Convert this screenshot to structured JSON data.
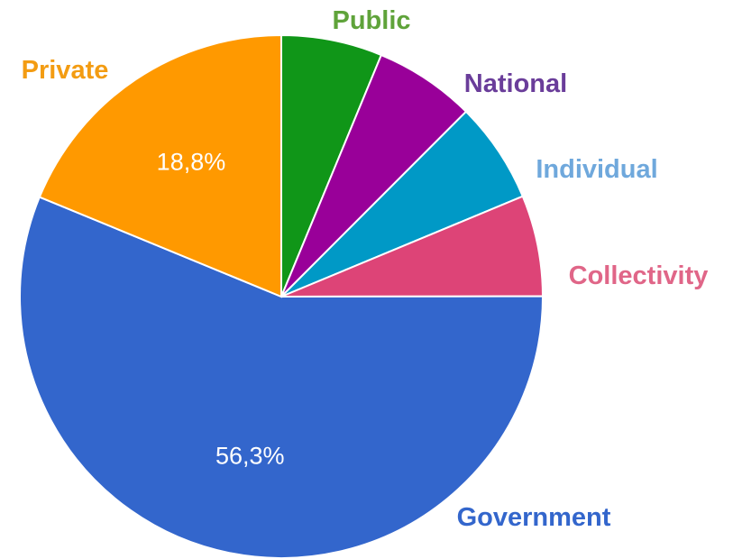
{
  "chart_data": {
    "type": "pie",
    "start": "12 o'clock",
    "direction": "clockwise",
    "slices": [
      {
        "label": "Public",
        "value": 6.25,
        "color": "#109618",
        "label_color": "#5fa33a"
      },
      {
        "label": "National",
        "value": 6.25,
        "color": "#990099",
        "label_color": "#6a3d9a"
      },
      {
        "label": "Individual",
        "value": 6.25,
        "color": "#0099c6",
        "label_color": "#6fa8dc"
      },
      {
        "label": "Collectivity",
        "value": 6.25,
        "color": "#dd4477",
        "label_color": "#e06688"
      },
      {
        "label": "Government",
        "value": 56.3,
        "display": "56,3%",
        "color": "#3366cc",
        "label_color": "#3366cc"
      },
      {
        "label": "Private",
        "value": 18.8,
        "display": "18,8%",
        "color": "#ff9900",
        "label_color": "#f39c12"
      }
    ]
  }
}
